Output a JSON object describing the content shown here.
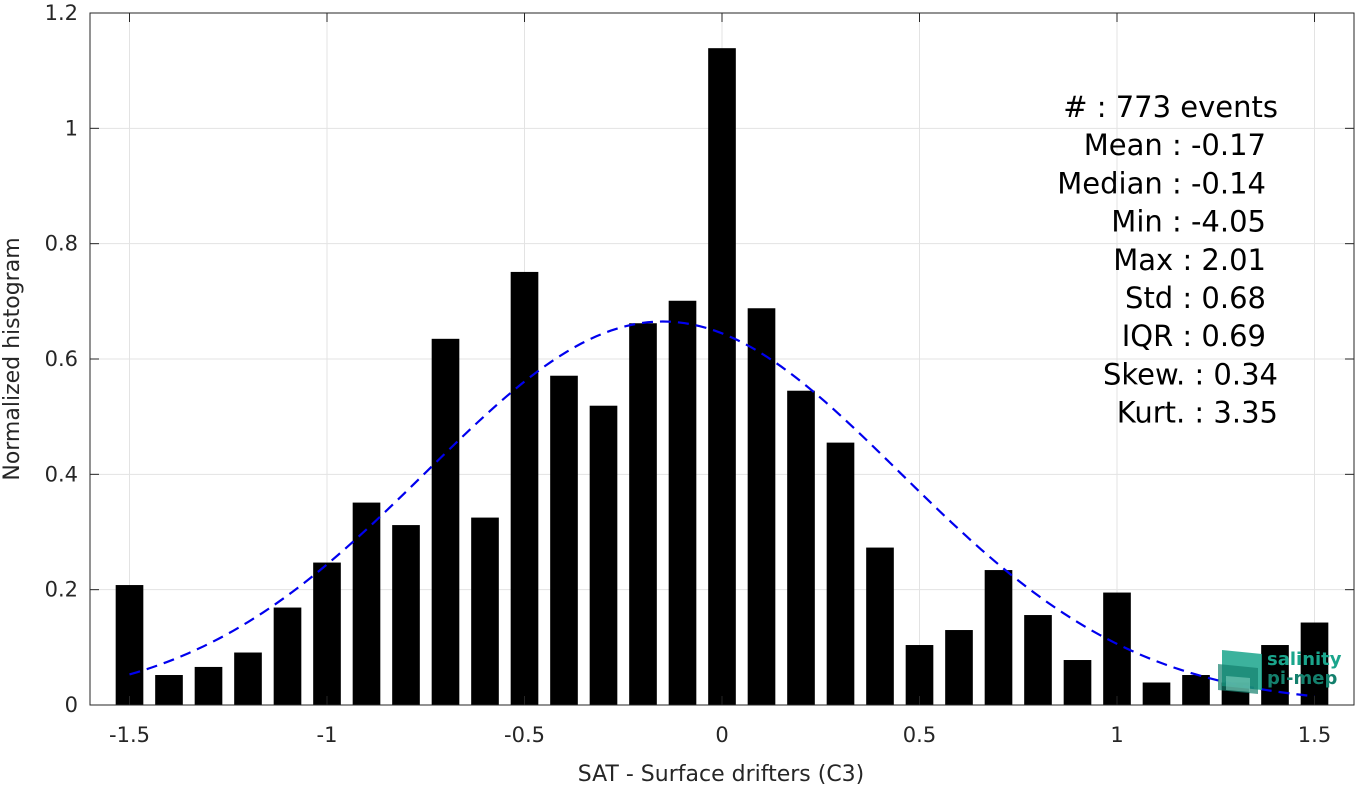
{
  "chart_data": {
    "type": "bar",
    "xlabel": "SAT - Surface drifters (C3)",
    "ylabel": "Normalized histogram",
    "xlim": [
      -1.6,
      1.6
    ],
    "ylim": [
      0,
      1.2
    ],
    "xticks": [
      -1.5,
      -1,
      -0.5,
      0,
      0.5,
      1,
      1.5
    ],
    "xtick_labels": [
      "-1.5",
      "-1",
      "-0.5",
      "0",
      "0.5",
      "1",
      "1.5"
    ],
    "yticks": [
      0,
      0.2,
      0.4,
      0.6,
      0.8,
      1,
      1.2
    ],
    "ytick_labels": [
      "0",
      "0.2",
      "0.4",
      "0.6",
      "0.8",
      "1",
      "1.2"
    ],
    "grid": true,
    "bar_width": 0.07,
    "bar_color": "#000000",
    "x": [
      -1.5,
      -1.4,
      -1.3,
      -1.2,
      -1.1,
      -1.0,
      -0.9,
      -0.8,
      -0.7,
      -0.6,
      -0.5,
      -0.4,
      -0.3,
      -0.2,
      -0.1,
      0.0,
      0.1,
      0.2,
      0.3,
      0.4,
      0.5,
      0.6,
      0.7,
      0.8,
      0.9,
      1.0,
      1.1,
      1.2,
      1.3,
      1.4,
      1.5
    ],
    "values": [
      0.208,
      0.052,
      0.066,
      0.091,
      0.169,
      0.247,
      0.351,
      0.312,
      0.635,
      0.325,
      0.751,
      0.571,
      0.519,
      0.662,
      0.701,
      1.139,
      0.688,
      0.545,
      0.455,
      0.273,
      0.104,
      0.13,
      0.234,
      0.156,
      0.078,
      0.195,
      0.039,
      0.052,
      0.039,
      0.104,
      0.143
    ],
    "fit_curve": {
      "style": "dashed",
      "color": "#0000ee",
      "mean": -0.15,
      "std": 0.6,
      "peak": 0.665,
      "x_range": [
        -1.5,
        1.5
      ]
    },
    "annotations": [
      "#  : 773 events",
      "Mean : -0.17",
      "Median : -0.14",
      "Min : -4.05",
      "Max : 2.01",
      "Std : 0.68",
      "IQR : 0.69",
      "Skew. : 0.34",
      "Kurt. : 3.35"
    ]
  },
  "logo": {
    "line1": "salinity",
    "line2": "pi-mep",
    "color": "#1aa58c"
  }
}
